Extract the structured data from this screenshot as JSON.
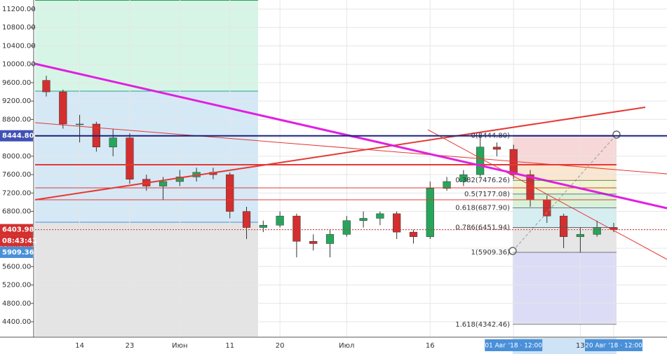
{
  "chart_data": {
    "type": "candlestick",
    "categories": [
      null,
      null,
      "14",
      null,
      null,
      "23",
      null,
      null,
      "Июн",
      null,
      null,
      "11",
      null,
      null,
      "20",
      null,
      null,
      null,
      "Июл",
      null,
      null,
      null,
      null,
      "16",
      null,
      null,
      null,
      null,
      "01 Авг '18 · 12:00",
      null,
      null,
      null,
      "13",
      null,
      "20 Авг '18 · 12:00"
    ],
    "open": [
      9650,
      9400,
      8700,
      8700,
      8200,
      8400,
      7500,
      7350,
      7450,
      7550,
      7650,
      7600,
      6800,
      6450,
      6500,
      6700,
      6150,
      6100,
      6300,
      6600,
      6650,
      6750,
      6350,
      6250,
      7300,
      7450,
      7600,
      8200,
      8150,
      7600,
      7050,
      6700,
      6250,
      6300,
      6450
    ],
    "high": [
      9750,
      9450,
      8900,
      8750,
      8600,
      8500,
      7600,
      7550,
      7700,
      7750,
      7750,
      7650,
      6900,
      6600,
      6800,
      6750,
      6300,
      6400,
      6700,
      6800,
      6800,
      6800,
      6400,
      7450,
      7550,
      7700,
      8450,
      8300,
      8250,
      7700,
      7150,
      6750,
      6450,
      6600,
      6550
    ],
    "low": [
      9300,
      8600,
      8300,
      8100,
      8000,
      7400,
      7250,
      7050,
      7350,
      7450,
      7500,
      6650,
      6200,
      6350,
      6450,
      5800,
      5950,
      5800,
      6250,
      6450,
      6500,
      6200,
      6100,
      6200,
      7250,
      7350,
      7550,
      8000,
      7500,
      6900,
      6550,
      6000,
      5900,
      6250,
      6350
    ],
    "close": [
      9400,
      8700,
      8700,
      8200,
      8400,
      7500,
      7350,
      7450,
      7550,
      7650,
      7600,
      6800,
      6450,
      6500,
      6700,
      6150,
      6100,
      6300,
      6600,
      6650,
      6750,
      6350,
      6250,
      7300,
      7450,
      7600,
      8200,
      8150,
      7600,
      7050,
      6700,
      6250,
      6300,
      6450,
      6403.98
    ],
    "up_color": "#26a65b",
    "down_color": "#d32f2f",
    "ylim": [
      4080,
      11398
    ],
    "yticks": [
      {
        "value": 4400,
        "label": "4400.00"
      },
      {
        "value": 4800,
        "label": "4800.00"
      },
      {
        "value": 5200,
        "label": "5200.00"
      },
      {
        "value": 5600,
        "label": "5600.00"
      },
      {
        "value": 6000,
        "label": "6000.00"
      },
      {
        "value": 6400,
        "label": "6400.00"
      },
      {
        "value": 6800,
        "label": "6800.00"
      },
      {
        "value": 7200,
        "label": "7200.00"
      },
      {
        "value": 7600,
        "label": "7600.00"
      },
      {
        "value": 8000,
        "label": "8000.00"
      },
      {
        "value": 8400,
        "label": "8400.00"
      },
      {
        "value": 8800,
        "label": "8800.00"
      },
      {
        "value": 9200,
        "label": "9200.00"
      },
      {
        "value": 9600,
        "label": "9600.00"
      },
      {
        "value": 10000,
        "label": "10000.00"
      },
      {
        "value": 10400,
        "label": "10400.00"
      },
      {
        "value": 10800,
        "label": "10800.00"
      },
      {
        "value": 11200,
        "label": "11200.00"
      }
    ],
    "grid": true,
    "horizontal_line": {
      "value": 8444.8,
      "color": "#1a237e"
    },
    "price_badges": [
      {
        "value": 8444.8,
        "label": "8444.80",
        "color": "#3f51b5"
      },
      {
        "value": 6403.98,
        "label": "6403.98",
        "color": "#d32f2f"
      },
      {
        "value": 5909.36,
        "label": "5909.36",
        "color": "#4a90d9"
      }
    ],
    "time_badge": "08:43:41",
    "fib_levels": [
      {
        "value": 8444.8,
        "label": "0(8444.80)"
      },
      {
        "value": 7476.26,
        "label": "0.382(7476.26)"
      },
      {
        "value": 7177.08,
        "label": "0.5(7177.08)"
      },
      {
        "value": 6877.9,
        "label": "0.618(6877.90)"
      },
      {
        "value": 6451.94,
        "label": "0.786(6451.94)"
      },
      {
        "value": 5909.36,
        "label": "1(5909.36)"
      },
      {
        "value": 4342.46,
        "label": "1.618(4342.46)"
      }
    ]
  }
}
